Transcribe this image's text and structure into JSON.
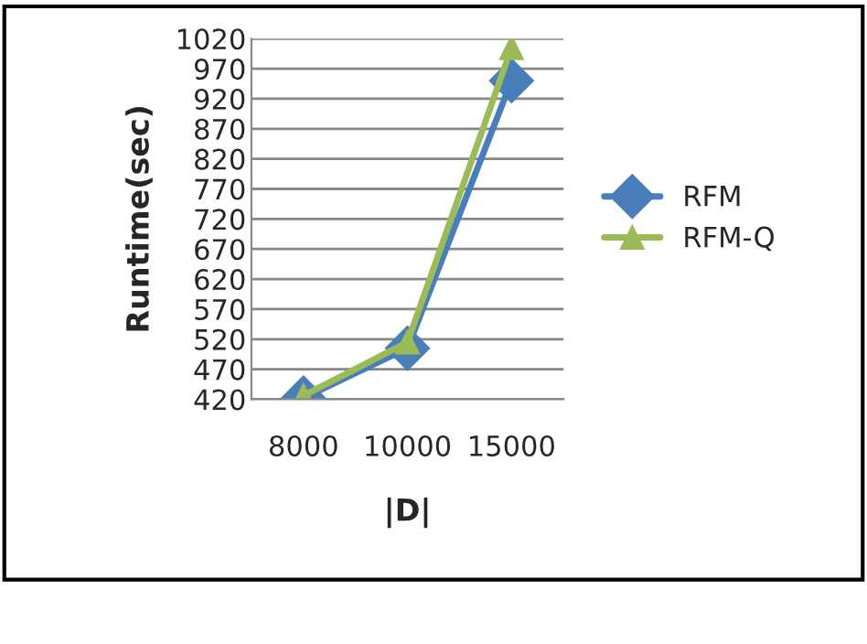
{
  "chart_data": {
    "type": "line",
    "xlabel": "|D|",
    "ylabel": "Runtime(sec)",
    "categories": [
      "8000",
      "10000",
      "15000"
    ],
    "series": [
      {
        "name": "RFM",
        "color": "#4a7ebb",
        "marker": "diamond",
        "values": [
          422,
          505,
          950
        ]
      },
      {
        "name": "RFM-Q",
        "color": "#9bbb59",
        "marker": "triangle",
        "values": [
          426,
          515,
          1005
        ]
      }
    ],
    "ylim": [
      420,
      1020
    ],
    "yticks": [
      420,
      470,
      520,
      570,
      620,
      670,
      720,
      770,
      820,
      870,
      920,
      970,
      1020
    ],
    "grid": "y",
    "legend": "right",
    "line_style": "solid"
  }
}
